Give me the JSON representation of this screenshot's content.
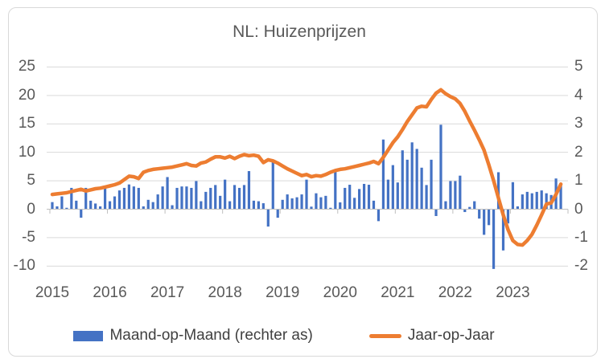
{
  "title": "NL: Huizenprijzen",
  "legend": [
    {
      "label": "Maand-op-Maand (rechter as)",
      "marker": "bar-swatch",
      "color": "#4472C4"
    },
    {
      "label": "Jaar-op-Jaar",
      "marker": "line-swatch",
      "color": "#ED7D31"
    }
  ],
  "colors": {
    "bar_series": "#4472C4",
    "line_series": "#ED7D31",
    "gridline": "#D9D9D9",
    "axis_line": "#BFBFBF",
    "axis_text": "#595959",
    "legend_text": "#404040",
    "frame_border": "#D9D9D9",
    "background": "#FFFFFF"
  },
  "chart_data": {
    "type": "combo",
    "title": "NL: Huizenprijzen",
    "frequency": "monthly",
    "x_start": "2015-01",
    "x_end": "2023-11",
    "grid": true,
    "legend_position": "bottom",
    "x_axis": {
      "tick_labels": [
        "2015",
        "2016",
        "2017",
        "2018",
        "2019",
        "2020",
        "2021",
        "2022",
        "2023"
      ],
      "slots": 108
    },
    "left_axis": {
      "min": -10,
      "max": 25,
      "ticks": [
        25,
        20,
        15,
        10,
        5,
        0,
        -5,
        -10
      ]
    },
    "right_axis": {
      "min": -2,
      "max": 5,
      "ticks": [
        5,
        4,
        3,
        2,
        1,
        0,
        -1,
        -2
      ]
    },
    "series": [
      {
        "name": "Maand-op-Maand (rechter as)",
        "type": "bar",
        "axis": "right",
        "color": "#4472C4",
        "values": [
          0.25,
          0.1,
          0.45,
          0.05,
          0.75,
          0.3,
          -0.3,
          0.75,
          0.3,
          0.2,
          0.1,
          0.73,
          0.28,
          0.45,
          0.66,
          0.75,
          0.87,
          0.8,
          0.75,
          0.1,
          0.33,
          0.25,
          0.52,
          0.8,
          1.13,
          0.14,
          0.75,
          0.8,
          0.8,
          0.75,
          0.99,
          0.28,
          0.61,
          0.75,
          0.85,
          0.47,
          1.04,
          0.28,
          0.85,
          0.75,
          0.85,
          1.34,
          0.3,
          0.28,
          0.21,
          -0.61,
          1.7,
          -0.3,
          0.33,
          0.52,
          0.38,
          0.42,
          0.52,
          1.04,
          0.09,
          0.56,
          0.42,
          0.47,
          0.05,
          1.41,
          0.24,
          0.75,
          0.86,
          0.4,
          0.71,
          0.89,
          0.86,
          0.3,
          -0.42,
          2.45,
          1.04,
          1.55,
          0.94,
          2.07,
          1.74,
          2.35,
          2.12,
          1.46,
          0.85,
          1.74,
          -0.24,
          2.97,
          0.28,
          0.99,
          0.99,
          1.18,
          -0.1,
          0.08,
          0.28,
          -0.33,
          -0.9,
          -0.56,
          -2.1,
          1.3,
          -1.45,
          -0.5,
          0.95,
          0.1,
          0.52,
          0.61,
          0.56,
          0.61,
          0.66,
          0.56,
          0.5,
          1.08,
          0.89
        ]
      },
      {
        "name": "Jaar-op-Jaar",
        "type": "line",
        "axis": "left",
        "color": "#ED7D31",
        "values": [
          2.6,
          2.7,
          2.8,
          2.9,
          3.1,
          3.3,
          3.5,
          3.2,
          3.4,
          3.6,
          3.7,
          3.9,
          4.1,
          4.3,
          4.6,
          5.2,
          5.8,
          5.7,
          5.4,
          6.5,
          6.8,
          7.0,
          7.1,
          7.2,
          7.3,
          7.4,
          7.6,
          7.8,
          8.0,
          7.7,
          7.6,
          8.1,
          8.3,
          8.8,
          9.2,
          9.2,
          9.0,
          9.3,
          8.9,
          9.3,
          9.6,
          9.4,
          9.5,
          9.3,
          8.2,
          8.7,
          8.5,
          8.1,
          7.6,
          7.1,
          6.7,
          6.3,
          5.9,
          6.1,
          5.7,
          5.9,
          5.8,
          6.1,
          6.5,
          6.8,
          7.0,
          7.1,
          7.3,
          7.5,
          7.7,
          7.9,
          8.1,
          8.4,
          8.0,
          9.1,
          10.4,
          11.7,
          12.7,
          14.0,
          15.4,
          16.6,
          17.8,
          18.1,
          18.0,
          19.3,
          20.4,
          21.0,
          20.3,
          19.8,
          19.4,
          18.6,
          17.2,
          15.5,
          13.9,
          12.2,
          10.4,
          7.8,
          5.0,
          2.0,
          -1.0,
          -3.6,
          -5.5,
          -6.2,
          -6.3,
          -5.5,
          -4.4,
          -2.8,
          -1.0,
          0.9,
          1.1,
          2.6,
          4.4
        ]
      }
    ]
  }
}
